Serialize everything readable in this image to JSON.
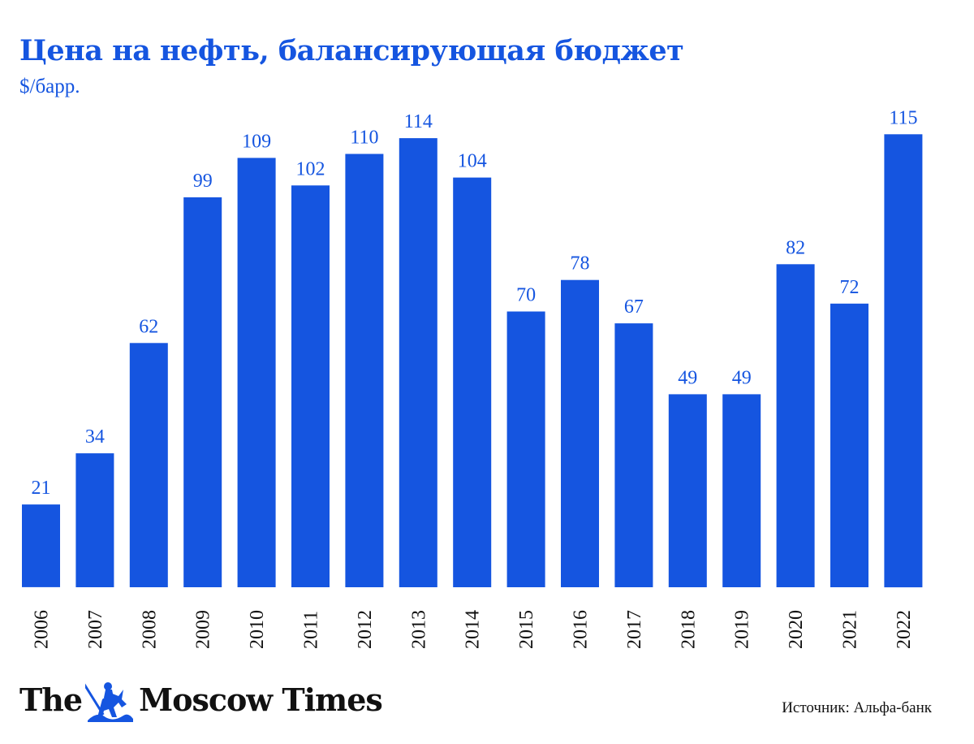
{
  "colors": {
    "accent": "#1555e0",
    "text": "#111111",
    "background": "#ffffff"
  },
  "chart_data": {
    "type": "bar",
    "title": "Цена на нефть, балансирующая бюджет",
    "subtitle": "$/барр.",
    "categories": [
      "2006",
      "2007",
      "2008",
      "2009",
      "2010",
      "2011",
      "2012",
      "2013",
      "2014",
      "2015",
      "2016",
      "2017",
      "2018",
      "2019",
      "2020",
      "2021",
      "2022"
    ],
    "values": [
      21,
      34,
      62,
      99,
      109,
      102,
      110,
      114,
      104,
      70,
      78,
      67,
      49,
      49,
      82,
      72,
      115
    ],
    "data_labels": true,
    "ylim": [
      0,
      115
    ],
    "grid": false,
    "legend": "none"
  },
  "footer": {
    "logo_left": "The",
    "logo_right": "Moscow Times",
    "source": "Источник: Альфа-банк"
  },
  "icons": {
    "logo_emblem": "st-george-dragon-icon"
  }
}
